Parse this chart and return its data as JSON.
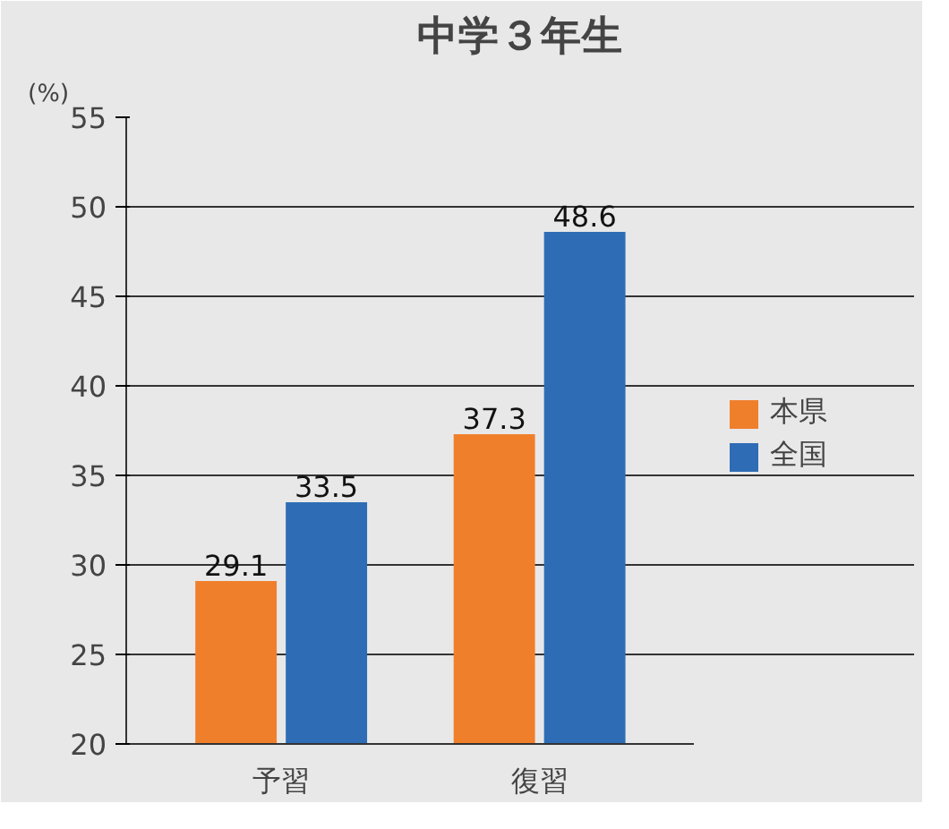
{
  "chart_data": {
    "type": "bar",
    "title": "中学３年生",
    "ylabel": "(%)",
    "categories": [
      "予習",
      "復習"
    ],
    "series": [
      {
        "name": "本県",
        "color": "#f07f2c",
        "values": [
          29.1,
          37.3
        ]
      },
      {
        "name": "全国",
        "color": "#2e6db5",
        "values": [
          33.5,
          48.6
        ]
      }
    ],
    "ylim": [
      20,
      55
    ],
    "yticks": [
      20,
      25,
      30,
      35,
      40,
      45,
      50,
      55
    ],
    "grid": "y",
    "legend": "right",
    "data_labels": true
  }
}
